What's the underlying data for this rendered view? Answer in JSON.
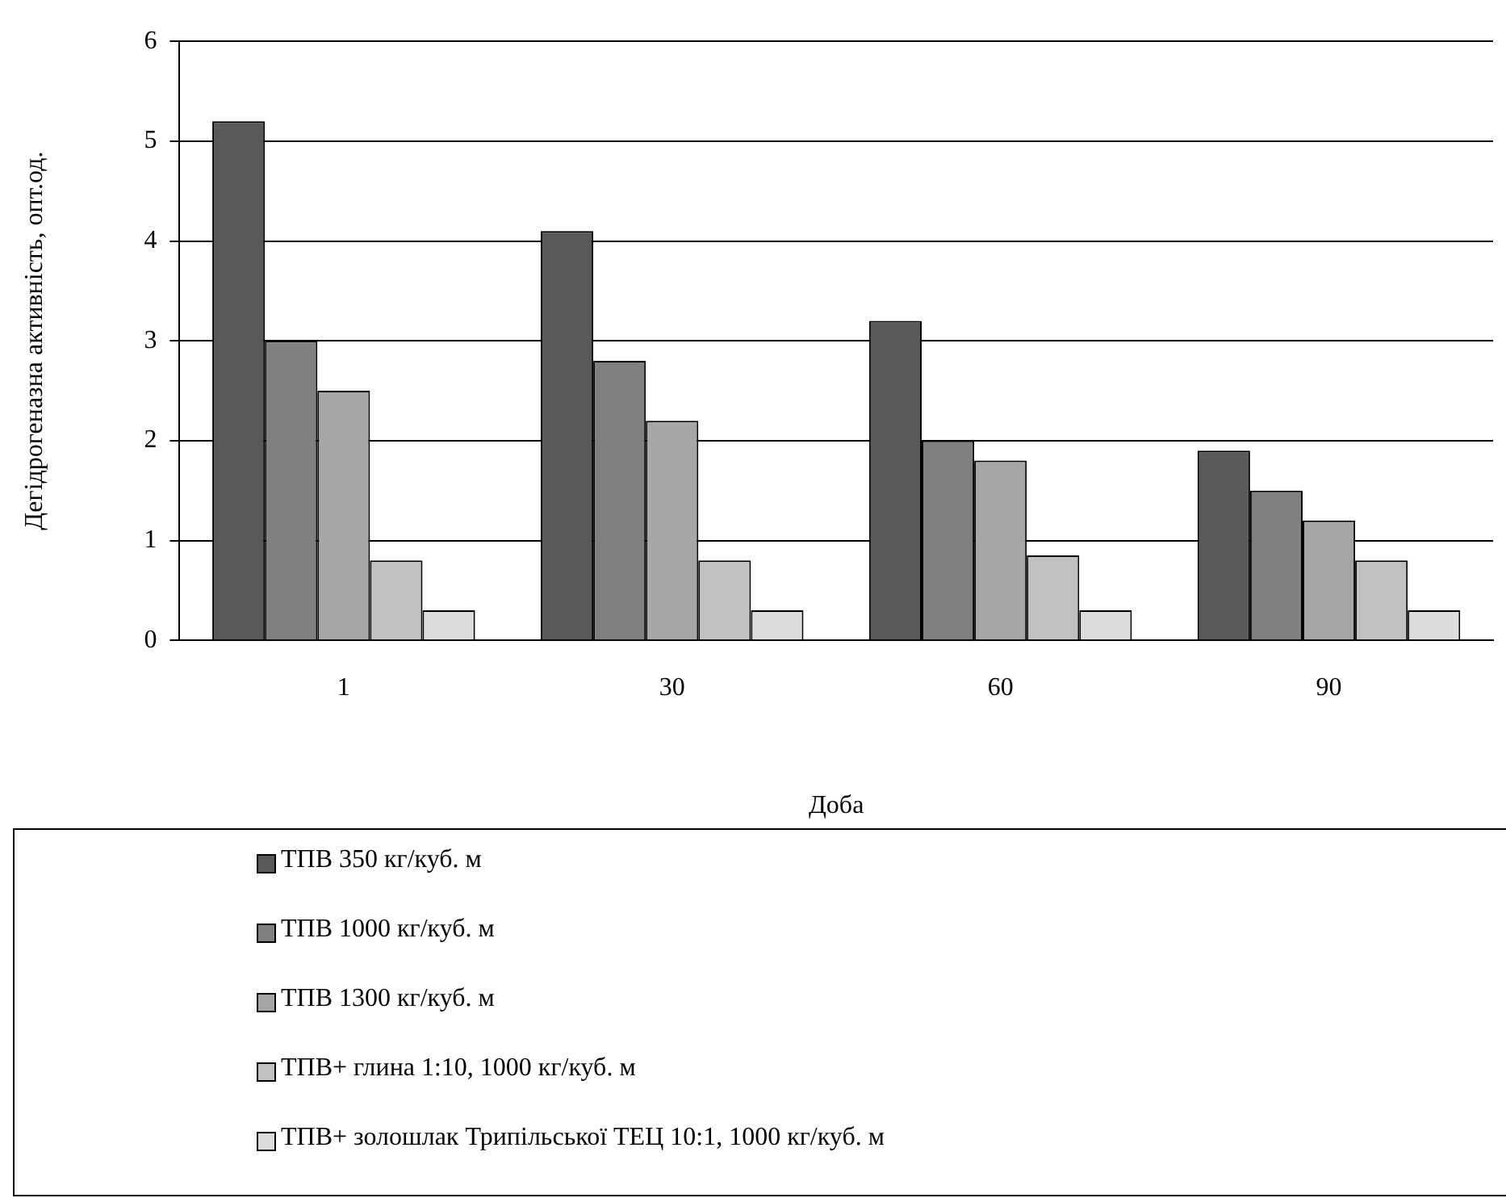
{
  "chart_data": {
    "type": "bar",
    "xlabel": "Доба",
    "ylabel": "Дегідрогеназна активність, опт.од.",
    "categories": [
      "1",
      "30",
      "60",
      "90"
    ],
    "series": [
      {
        "name": "ТПВ 350 кг/куб. м",
        "color": "#595959",
        "values": [
          5.2,
          4.1,
          3.2,
          1.9
        ]
      },
      {
        "name": "ТПВ 1000 кг/куб. м",
        "color": "#808080",
        "values": [
          3.0,
          2.8,
          2.0,
          1.5
        ]
      },
      {
        "name": "ТПВ 1300 кг/куб. м",
        "color": "#a6a6a6",
        "values": [
          2.5,
          2.2,
          1.8,
          1.2
        ]
      },
      {
        "name": "ТПВ+ глина 1:10, 1000 кг/куб. м",
        "color": "#c0c0c0",
        "values": [
          0.8,
          0.8,
          0.85,
          0.8
        ]
      },
      {
        "name": "ТПВ+ золошлак Трипільської ТЕЦ 10:1, 1000 кг/куб. м",
        "color": "#dcdcdc",
        "values": [
          0.3,
          0.3,
          0.3,
          0.3
        ]
      }
    ],
    "ylim": [
      0,
      6
    ],
    "yticks": [
      0,
      1,
      2,
      3,
      4,
      5,
      6
    ],
    "grid": "y",
    "legend": "bottom"
  }
}
